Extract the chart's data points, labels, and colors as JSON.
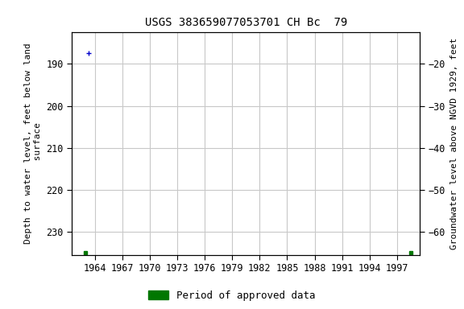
{
  "title": "USGS 383659077053701 CH Bc  79",
  "ylabel_left": "Depth to water level, feet below land\n surface",
  "ylabel_right": "Groundwater level above NGVD 1929, feet",
  "xlim": [
    1961.5,
    1999.5
  ],
  "ylim_left": [
    235.5,
    182.5
  ],
  "ylim_right": [
    -65.5,
    -12.5
  ],
  "xticks": [
    1964,
    1967,
    1970,
    1973,
    1976,
    1979,
    1982,
    1985,
    1988,
    1991,
    1994,
    1997
  ],
  "yticks_left": [
    190,
    200,
    210,
    220,
    230
  ],
  "yticks_right": [
    -20,
    -30,
    -40,
    -50,
    -60
  ],
  "bg_color": "#ffffff",
  "grid_color": "#c8c8c8",
  "blue_point_x": 1963.3,
  "blue_point_y": 187.5,
  "green_sq1_x": 1963.0,
  "green_sq1_y": 235.0,
  "green_sq2_x": 1998.5,
  "green_sq2_y": 235.0,
  "blue_color": "#0000cc",
  "green_color": "#007700",
  "title_fontsize": 10,
  "label_fontsize": 8,
  "tick_fontsize": 8.5,
  "legend_label": "Period of approved data",
  "legend_fontsize": 9
}
